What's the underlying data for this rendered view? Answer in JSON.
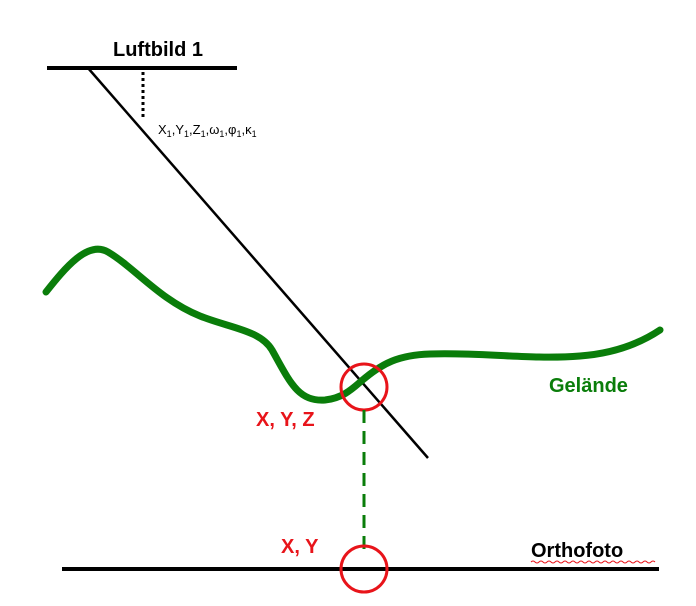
{
  "labels": {
    "aerial_image": "Luftbild 1",
    "parameters": {
      "X": "X",
      "X_sub": "1",
      "Y": "Y",
      "Y_sub": "1",
      "Z": "Z",
      "Z_sub": "1",
      "omega": "ω",
      "omega_sub": "1",
      "phi": "φ",
      "phi_sub": "1",
      "kappa": "κ",
      "kappa_sub": "1",
      "separator": ","
    },
    "terrain": "Gelände",
    "ground_point": "X, Y, Z",
    "ortho_point": "X, Y",
    "orthophoto": "Orthofoto"
  },
  "colors": {
    "line": "#000000",
    "terrain": "#0a7d0a",
    "highlight": "#e8141a"
  }
}
